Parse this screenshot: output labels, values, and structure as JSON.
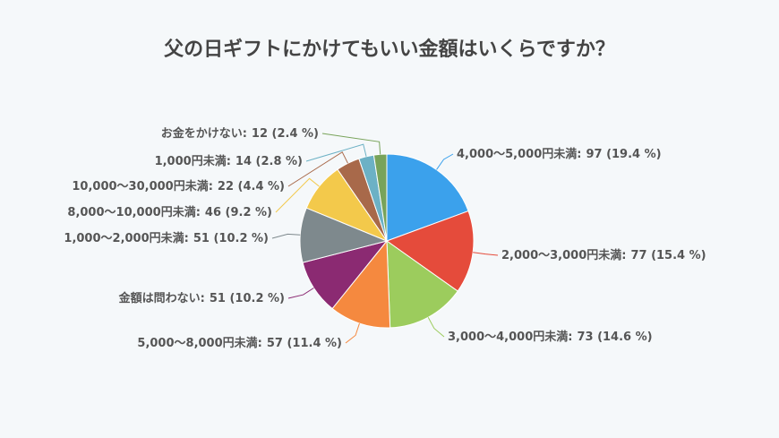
{
  "chart_data": {
    "type": "pie",
    "title": "父の日ギフトにかけてもいい金額はいくらですか？",
    "categories": [
      "4,000～5,000円未満:",
      "2,000～3,000円未満:",
      "3,000～4,000円未満:",
      "5,000～8,000円未満:",
      "金額は問わない:",
      "1,000～2,000円未満:",
      "8,000～10,000円未満:",
      "10,000～30,000円未満:",
      "1,000円未満:",
      "お金をかけない:"
    ],
    "values": [
      97,
      77,
      73,
      57,
      51,
      51,
      46,
      22,
      14,
      12
    ],
    "value_labels": [
      "97 (19.4 %)",
      "77 (15.4 %)",
      "73 (14.6 %)",
      "57 (11.4 %)",
      "51 (10.2 %)",
      "51 (10.2 %)",
      "46 (9.2 %)",
      "22 (4.4 %)",
      "14 (2.8 %)",
      "12 (2.4 %)"
    ],
    "colors": [
      "#3ba1ec",
      "#e54b3b",
      "#9ccc5d",
      "#f5893f",
      "#8b2a72",
      "#7e898d",
      "#f3c94b",
      "#a8694a",
      "#6cb1c5",
      "#78a35a"
    ]
  }
}
